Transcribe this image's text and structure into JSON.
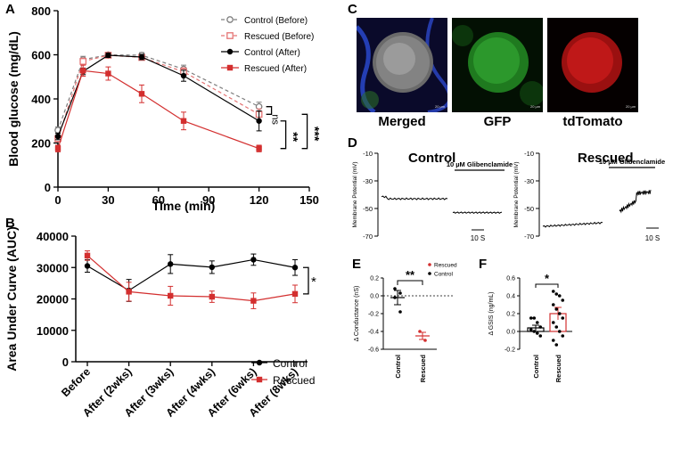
{
  "panel_letters": {
    "a": "A",
    "b": "B",
    "c": "C",
    "d": "D",
    "e": "E",
    "f": "F"
  },
  "chart_data": [
    {
      "id": "A",
      "type": "line",
      "xlabel": "Time (min)",
      "ylabel": "Blood glucose (mg/dL)",
      "xlim": [
        0,
        150
      ],
      "ylim": [
        0,
        800
      ],
      "xticks": [
        "0",
        "30",
        "60",
        "90",
        "120",
        "150"
      ],
      "yticks": [
        "0",
        "200",
        "400",
        "600",
        "800"
      ],
      "x": [
        0,
        15,
        30,
        50,
        75,
        120
      ],
      "legend_position": "top-right",
      "series": [
        {
          "name": "Control (Before)",
          "color": "#7f7f7f",
          "style": "dashed",
          "marker": "open-circle",
          "values": [
            258,
            578,
            600,
            598,
            535,
            365
          ],
          "err": [
            15,
            15,
            10,
            12,
            18,
            20
          ]
        },
        {
          "name": "Rescued (Before)",
          "color": "#e57373",
          "style": "dashed",
          "marker": "open-square",
          "values": [
            220,
            570,
            598,
            588,
            523,
            330
          ],
          "err": [
            15,
            15,
            10,
            12,
            18,
            25
          ]
        },
        {
          "name": "Control (After)",
          "color": "#000000",
          "style": "solid",
          "marker": "filled-circle",
          "values": [
            230,
            525,
            598,
            590,
            505,
            300
          ],
          "err": [
            15,
            15,
            10,
            12,
            25,
            45
          ]
        },
        {
          "name": "Rescued (After)",
          "color": "#d32f2f",
          "style": "solid",
          "marker": "filled-square",
          "values": [
            175,
            528,
            515,
            423,
            300,
            175
          ],
          "err": [
            15,
            25,
            30,
            40,
            40,
            15
          ]
        }
      ],
      "significance": [
        "ns",
        "**",
        "***"
      ]
    },
    {
      "id": "B",
      "type": "line",
      "xlabel": "",
      "ylabel": "Area Under Curve (AUC)",
      "ylim": [
        0,
        40000
      ],
      "yticks": [
        "0",
        "10000",
        "20000",
        "30000",
        "40000"
      ],
      "categories": [
        "Before",
        "After (2wks)",
        "After (3wks)",
        "After (4wks)",
        "After (6wks)",
        "After (8wks)"
      ],
      "legend_position": "bottom-right",
      "series": [
        {
          "name": "Control",
          "color": "#000000",
          "marker": "filled-circle",
          "values": [
            30500,
            22700,
            31100,
            30100,
            32500,
            30000
          ],
          "err": [
            2000,
            3500,
            3000,
            2000,
            1800,
            2500
          ]
        },
        {
          "name": "Rescued",
          "color": "#d32f2f",
          "marker": "filled-square",
          "values": [
            33800,
            22300,
            21000,
            20700,
            19400,
            21600
          ],
          "err": [
            1500,
            3000,
            3000,
            1800,
            2500,
            2800
          ]
        }
      ],
      "significance": [
        "*"
      ]
    },
    {
      "id": "D",
      "type": "line",
      "ylabel": "Membrane Potential (mV)",
      "yticks": [
        "-10",
        "-30",
        "-50",
        "-70"
      ],
      "ylim": [
        -70,
        -10
      ],
      "groups": [
        {
          "title": "Control",
          "treatment": "10 µM Glibenclamide",
          "scale": "10 S",
          "baseline_mV": -43,
          "after_mV": -53
        },
        {
          "title": "Rescued",
          "treatment": "10 µM Glibenclamide",
          "scale": "10 S",
          "baseline_mV": -63,
          "after_mV": -38
        }
      ]
    },
    {
      "id": "E",
      "type": "scatter",
      "ylabel": "Δ Conductance (nS)",
      "ylim": [
        -0.6,
        0.2
      ],
      "yticks": [
        "0.2",
        "0.0",
        "-0.2",
        "-0.4",
        "-0.6"
      ],
      "categories": [
        "Control",
        "Rescued"
      ],
      "legend": [
        "Rescued",
        "Control"
      ],
      "series": [
        {
          "name": "Control",
          "color": "#000000",
          "mean": -0.02,
          "sem": 0.08,
          "points": [
            0.08,
            0.03,
            -0.02,
            -0.18
          ]
        },
        {
          "name": "Rescued",
          "color": "#d32f2f",
          "mean": -0.45,
          "sem": 0.04,
          "points": [
            -0.4,
            -0.5
          ]
        }
      ],
      "significance": [
        "**"
      ]
    },
    {
      "id": "F",
      "type": "bar",
      "ylabel": "Δ GSIS (ng/mL)",
      "ylim": [
        -0.2,
        0.6
      ],
      "yticks": [
        "0.6",
        "0.4",
        "0.2",
        "0.0",
        "-0.2"
      ],
      "categories": [
        "Control",
        "Rescued"
      ],
      "series": [
        {
          "name": "Control",
          "color": "#000000",
          "mean": 0.04,
          "sem": 0.03,
          "points": [
            0.15,
            0.15,
            0.1,
            0.05,
            0.02,
            0.0,
            -0.02,
            -0.05
          ]
        },
        {
          "name": "Rescued",
          "color": "#d32f2f",
          "mean": 0.2,
          "sem": 0.07,
          "points": [
            0.45,
            0.42,
            0.4,
            0.35,
            0.3,
            0.25,
            0.2,
            0.15,
            0.1,
            0.05,
            0.0,
            -0.05,
            -0.1,
            -0.15
          ]
        }
      ],
      "significance": [
        "*"
      ]
    }
  ],
  "images": {
    "captions": [
      "Merged",
      "GFP",
      "tdTomato"
    ],
    "scale_text": "20 µm"
  }
}
